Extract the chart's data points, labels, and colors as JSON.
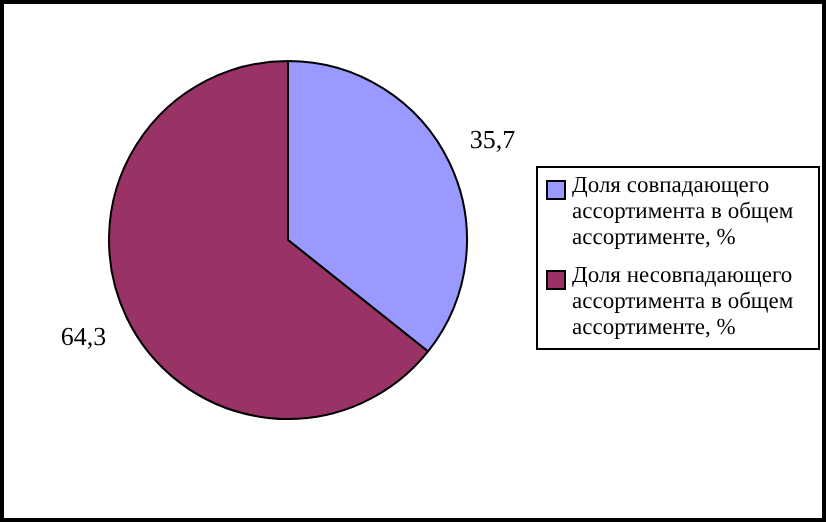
{
  "chart_data": {
    "type": "pie",
    "categories": [
      "Доля совпадающего ассортимента в общем ассортименте, %",
      "Доля несовпадающего ассортимента в общем ассортименте, %"
    ],
    "values": [
      35.7,
      64.3
    ],
    "colors": [
      "#9999ff",
      "#993366"
    ],
    "value_labels": [
      "35,7",
      "64,3"
    ],
    "legend": "right"
  }
}
